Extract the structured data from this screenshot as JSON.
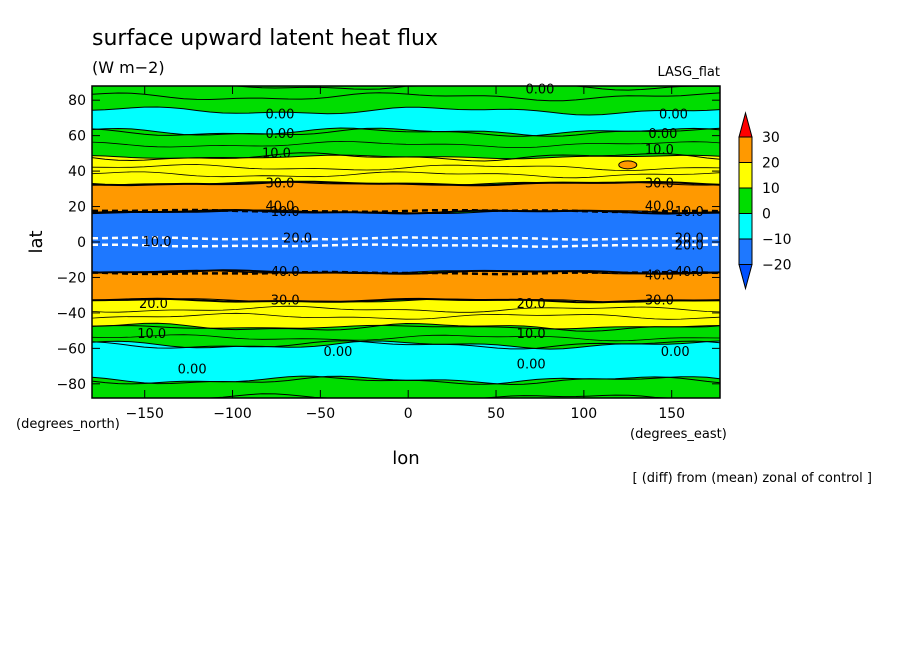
{
  "chart_data": {
    "type": "heatmap",
    "title": "surface upward latent heat flux",
    "units": "(W m−2)",
    "model_label": "LASG_flat",
    "note": "[ (diff) from (mean) zonal of control ]",
    "xlabel": "lon",
    "ylabel": "lat",
    "x_unit_label": "(degrees_east)",
    "y_unit_label": "(degrees_north)",
    "xlim": [
      -180,
      177.5
    ],
    "ylim": [
      -88,
      88
    ],
    "xticks": [
      -150,
      -100,
      -50,
      0,
      50,
      100,
      150
    ],
    "xtick_labels": [
      "−150",
      "−100",
      "−50",
      "0",
      "50",
      "100",
      "150"
    ],
    "yticks": [
      -80,
      -60,
      -40,
      -20,
      0,
      20,
      40,
      60,
      80
    ],
    "ytick_labels": [
      "−80",
      "−60",
      "−40",
      "−20",
      "0",
      "20",
      "40",
      "60",
      "80"
    ],
    "colorbar": {
      "levels": [
        -20,
        -10,
        0,
        10,
        20,
        30
      ],
      "labels": [
        "−20",
        "−10",
        "0",
        "10",
        "20",
        "30"
      ],
      "colors": [
        "#1e78ff",
        "#00ffff",
        "#00dd00",
        "#ffff00",
        "#ff9900",
        "#ff0000"
      ],
      "under_color": "#0050ff",
      "over_color": "#ff0000"
    },
    "bands": [
      {
        "lat_min": 82,
        "lat_max": 88,
        "value": 0
      },
      {
        "lat_min": 62,
        "lat_max": 74,
        "value": -5
      },
      {
        "lat_min": 48,
        "lat_max": 62,
        "value": 5
      },
      {
        "lat_min": 33,
        "lat_max": 48,
        "value": 15
      },
      {
        "lat_min": 17,
        "lat_max": 33,
        "value": 25
      },
      {
        "lat_min": -17,
        "lat_max": 17,
        "value": -15
      },
      {
        "lat_min": -33,
        "lat_max": -17,
        "value": 25
      },
      {
        "lat_min": -48,
        "lat_max": -33,
        "value": 15
      },
      {
        "lat_min": -58,
        "lat_max": -48,
        "value": 5
      },
      {
        "lat_min": -78,
        "lat_max": -58,
        "value": -5
      },
      {
        "lat_min": -88,
        "lat_max": -78,
        "value": 5
      }
    ],
    "contour_labels": [
      {
        "text": "0.00",
        "lon": 75,
        "lat": 86
      },
      {
        "text": "0.00",
        "lon": -73,
        "lat": 72
      },
      {
        "text": "0.00",
        "lon": 151,
        "lat": 72
      },
      {
        "text": "0.00",
        "lon": -73,
        "lat": 61
      },
      {
        "text": "0.00",
        "lon": 145,
        "lat": 61
      },
      {
        "text": "10.0",
        "lon": -75,
        "lat": 50
      },
      {
        "text": "10.0",
        "lon": 143,
        "lat": 52
      },
      {
        "text": "30.0",
        "lon": -73,
        "lat": 33
      },
      {
        "text": "30.0",
        "lon": 143,
        "lat": 33
      },
      {
        "text": "40.0",
        "lon": -73,
        "lat": 20
      },
      {
        "text": "40.0",
        "lon": 143,
        "lat": 20
      },
      {
        "text": "10.0",
        "lon": -70,
        "lat": 17
      },
      {
        "text": "10.0",
        "lon": 160,
        "lat": 17
      },
      {
        "text": "10.0",
        "lon": -143,
        "lat": 0
      },
      {
        "text": "20.0",
        "lon": -63,
        "lat": 2
      },
      {
        "text": "20.0",
        "lon": 160,
        "lat": 2
      },
      {
        "text": "20.0",
        "lon": 160,
        "lat": -2
      },
      {
        "text": "40.0",
        "lon": -70,
        "lat": -17
      },
      {
        "text": "40.0",
        "lon": 143,
        "lat": -19
      },
      {
        "text": "40.0",
        "lon": 160,
        "lat": -17
      },
      {
        "text": "20.0",
        "lon": -145,
        "lat": -35
      },
      {
        "text": "20.0",
        "lon": 70,
        "lat": -35
      },
      {
        "text": "30.0",
        "lon": -70,
        "lat": -33
      },
      {
        "text": "30.0",
        "lon": 143,
        "lat": -33
      },
      {
        "text": "10.0",
        "lon": -146,
        "lat": -52
      },
      {
        "text": "10.0",
        "lon": 70,
        "lat": -52
      },
      {
        "text": "0.00",
        "lon": -40,
        "lat": -62
      },
      {
        "text": "0.00",
        "lon": 152,
        "lat": -62
      },
      {
        "text": "0.00",
        "lon": 70,
        "lat": -69
      },
      {
        "text": "0.00",
        "lon": -123,
        "lat": -72
      }
    ]
  }
}
